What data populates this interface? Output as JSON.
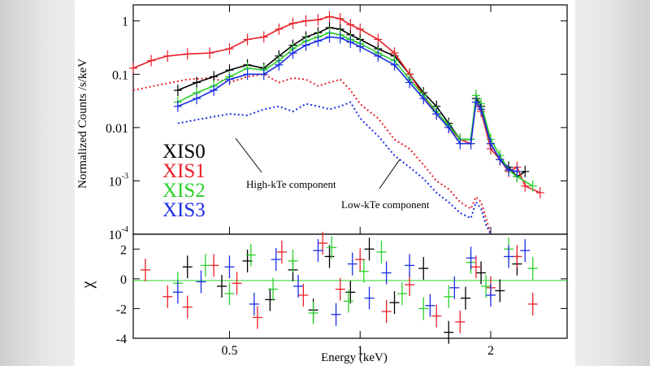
{
  "colors": {
    "xis0": "#000000",
    "xis1": "#e8202a",
    "xis2": "#2ad12a",
    "xis3": "#1a2ee6",
    "zero_line": "#2ad12a"
  },
  "chart_data": [
    {
      "type": "scatter",
      "panel": "spectrum",
      "xlabel": "",
      "ylabel": "Normalized Counts /s/keV",
      "xscale": "log",
      "yscale": "log",
      "xlim": [
        0.3,
        3.0
      ],
      "ylim": [
        0.0001,
        2
      ],
      "yticks": [
        {
          "value": 1,
          "label": "1"
        },
        {
          "value": 0.1,
          "label": "0.1"
        },
        {
          "value": 0.01,
          "label": "0.01"
        },
        {
          "value": 0.001,
          "label": "10",
          "sup": "-3"
        },
        {
          "value": 0.0001,
          "label": "10",
          "sup": "-4"
        }
      ],
      "legend": [
        "XIS0",
        "XIS1",
        "XIS2",
        "XIS3"
      ],
      "legend_position": "bottom-left",
      "annotations": [
        "High-kTe component",
        "Low-kTe component"
      ],
      "series": [
        {
          "name": "XIS0",
          "x": [
            0.38,
            0.42,
            0.46,
            0.5,
            0.55,
            0.6,
            0.65,
            0.7,
            0.75,
            0.8,
            0.85,
            0.9,
            0.95,
            1.0,
            1.1,
            1.2,
            1.3,
            1.4,
            1.5,
            1.6,
            1.7,
            1.8,
            1.85,
            1.9,
            2.0,
            2.1,
            2.2,
            2.3,
            2.4
          ],
          "y": [
            0.05,
            0.07,
            0.09,
            0.12,
            0.15,
            0.13,
            0.22,
            0.35,
            0.5,
            0.6,
            0.75,
            0.7,
            0.55,
            0.45,
            0.3,
            0.22,
            0.1,
            0.045,
            0.025,
            0.012,
            0.006,
            0.006,
            0.035,
            0.025,
            0.005,
            0.0025,
            0.0018,
            0.0012,
            0.0015
          ]
        },
        {
          "name": "XIS1",
          "x": [
            0.3,
            0.33,
            0.36,
            0.4,
            0.45,
            0.5,
            0.55,
            0.6,
            0.65,
            0.7,
            0.75,
            0.8,
            0.85,
            0.9,
            0.95,
            1.0,
            1.1,
            1.2,
            1.3,
            1.4,
            1.5,
            1.6,
            1.7,
            1.8,
            1.85,
            1.9,
            2.0,
            2.1,
            2.2,
            2.3,
            2.4,
            2.6
          ],
          "y": [
            0.13,
            0.18,
            0.22,
            0.24,
            0.25,
            0.3,
            0.45,
            0.5,
            0.7,
            0.9,
            1.0,
            1.05,
            1.2,
            1.1,
            0.85,
            0.7,
            0.45,
            0.25,
            0.1,
            0.04,
            0.018,
            0.01,
            0.006,
            0.005,
            0.03,
            0.02,
            0.004,
            0.0025,
            0.0015,
            0.0018,
            0.0008,
            0.0006
          ]
        },
        {
          "name": "XIS2",
          "x": [
            0.38,
            0.42,
            0.46,
            0.5,
            0.55,
            0.6,
            0.65,
            0.7,
            0.75,
            0.8,
            0.85,
            0.9,
            0.95,
            1.0,
            1.1,
            1.2,
            1.3,
            1.4,
            1.5,
            1.6,
            1.7,
            1.8,
            1.85,
            1.9,
            2.0,
            2.1,
            2.2,
            2.3,
            2.5
          ],
          "y": [
            0.03,
            0.045,
            0.06,
            0.09,
            0.13,
            0.12,
            0.18,
            0.3,
            0.42,
            0.5,
            0.6,
            0.55,
            0.45,
            0.38,
            0.25,
            0.18,
            0.08,
            0.04,
            0.02,
            0.011,
            0.006,
            0.006,
            0.04,
            0.028,
            0.006,
            0.003,
            0.0016,
            0.0012,
            0.0008
          ]
        },
        {
          "name": "XIS3",
          "x": [
            0.38,
            0.42,
            0.46,
            0.5,
            0.55,
            0.6,
            0.65,
            0.7,
            0.75,
            0.8,
            0.85,
            0.9,
            0.95,
            1.0,
            1.1,
            1.2,
            1.3,
            1.4,
            1.5,
            1.6,
            1.7,
            1.8,
            1.85,
            1.9,
            2.0,
            2.1,
            2.2,
            2.3
          ],
          "y": [
            0.025,
            0.035,
            0.05,
            0.08,
            0.1,
            0.1,
            0.15,
            0.25,
            0.35,
            0.42,
            0.5,
            0.48,
            0.4,
            0.33,
            0.22,
            0.15,
            0.07,
            0.035,
            0.018,
            0.01,
            0.005,
            0.005,
            0.03,
            0.022,
            0.005,
            0.0025,
            0.0016,
            0.0015
          ]
        }
      ],
      "model_components": [
        {
          "name": "High-kTe component",
          "style": "dotted",
          "x": [
            0.3,
            0.35,
            0.4,
            0.45,
            0.5,
            0.55,
            0.6,
            0.65,
            0.7,
            0.75,
            0.8,
            0.85,
            0.9,
            0.95,
            1.0,
            1.05,
            1.1,
            1.2,
            1.3,
            1.4,
            1.5,
            1.6,
            1.7,
            1.8,
            1.85,
            1.9,
            1.95,
            2.0
          ],
          "y": [
            0.05,
            0.065,
            0.08,
            0.085,
            0.07,
            0.09,
            0.1,
            0.07,
            0.085,
            0.08,
            0.06,
            0.07,
            0.08,
            0.05,
            0.028,
            0.02,
            0.015,
            0.006,
            0.004,
            0.002,
            0.001,
            0.0007,
            0.0004,
            0.0003,
            0.0005,
            0.0004,
            0.0002,
            0.0001
          ]
        },
        {
          "name": "Low-kTe component",
          "style": "dotted",
          "x": [
            0.38,
            0.42,
            0.46,
            0.5,
            0.55,
            0.6,
            0.65,
            0.7,
            0.75,
            0.8,
            0.85,
            0.9,
            0.95,
            1.0,
            1.05,
            1.1,
            1.2,
            1.3,
            1.4,
            1.5,
            1.6,
            1.7,
            1.8,
            1.85,
            1.9,
            1.95,
            2.0
          ],
          "y": [
            0.012,
            0.014,
            0.016,
            0.018,
            0.017,
            0.022,
            0.025,
            0.02,
            0.028,
            0.025,
            0.022,
            0.025,
            0.03,
            0.015,
            0.01,
            0.007,
            0.003,
            0.0018,
            0.0011,
            0.0006,
            0.0004,
            0.00025,
            0.0002,
            0.0004,
            0.0003,
            0.00015,
            0.0001
          ]
        }
      ]
    },
    {
      "type": "scatter",
      "panel": "residuals",
      "xlabel": "Energy (keV)",
      "ylabel": "χ",
      "xscale": "log",
      "xlim": [
        0.3,
        3.0
      ],
      "ylim": [
        -4,
        3
      ],
      "xticks": [
        {
          "value": 0.5,
          "label": "0.5"
        },
        {
          "value": 1,
          "label": "1"
        },
        {
          "value": 2,
          "label": "2"
        }
      ],
      "yticks": [
        {
          "value": 2,
          "label": "2"
        },
        {
          "value": 0,
          "label": "0"
        },
        {
          "value": -2,
          "label": "-2"
        },
        {
          "value": -4,
          "label": "-4"
        }
      ],
      "series": [
        {
          "name": "XIS0",
          "x": [
            0.4,
            0.48,
            0.55,
            0.62,
            0.7,
            0.78,
            0.85,
            0.95,
            1.05,
            1.2,
            1.4,
            1.6,
            1.75,
            1.9,
            2.1,
            2.3
          ],
          "y": [
            0.8,
            -0.5,
            1.2,
            -1.4,
            0.6,
            -2.1,
            1.5,
            -0.9,
            2.0,
            -1.6,
            0.7,
            -3.6,
            -1.3,
            0.4,
            -0.8,
            1.0
          ]
        },
        {
          "name": "XIS1",
          "x": [
            0.32,
            0.36,
            0.4,
            0.46,
            0.52,
            0.58,
            0.66,
            0.74,
            0.82,
            0.9,
            1.0,
            1.15,
            1.3,
            1.5,
            1.7,
            1.85,
            2.0,
            2.3,
            2.5
          ],
          "y": [
            0.6,
            -1.2,
            -1.9,
            0.9,
            -0.3,
            -2.6,
            1.8,
            -1.1,
            2.4,
            -0.7,
            1.3,
            -2.2,
            -0.4,
            -2.5,
            -2.9,
            0.8,
            -0.6,
            1.5,
            -1.7
          ]
        },
        {
          "name": "XIS2",
          "x": [
            0.38,
            0.44,
            0.5,
            0.56,
            0.63,
            0.7,
            0.78,
            0.86,
            0.94,
            1.02,
            1.12,
            1.25,
            1.4,
            1.6,
            1.8,
            1.95,
            2.2,
            2.5
          ],
          "y": [
            -0.3,
            0.9,
            -1.0,
            1.6,
            -0.7,
            1.2,
            -2.3,
            2.1,
            -1.5,
            0.5,
            1.8,
            -1.0,
            -2.0,
            -1.2,
            1.1,
            -0.5,
            2.0,
            0.7
          ]
        },
        {
          "name": "XIS3",
          "x": [
            0.38,
            0.43,
            0.5,
            0.57,
            0.64,
            0.72,
            0.8,
            0.88,
            0.96,
            1.05,
            1.15,
            1.3,
            1.45,
            1.65,
            1.8,
            2.0,
            2.2,
            2.4
          ],
          "y": [
            -0.9,
            -0.2,
            0.8,
            -1.7,
            1.3,
            -0.5,
            1.9,
            -2.4,
            1.0,
            -1.3,
            0.4,
            0.9,
            -1.8,
            -0.6,
            1.4,
            -1.1,
            1.5,
            1.9
          ]
        }
      ]
    }
  ]
}
